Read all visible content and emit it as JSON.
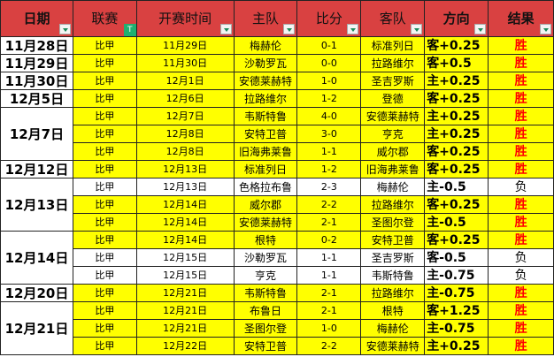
{
  "headers": [
    "日期",
    "联赛",
    "开赛时间",
    "主队",
    "比分",
    "客队",
    "方向",
    "结果"
  ],
  "groups": [
    {
      "date": "11月28日",
      "rows": [
        [
          "比甲",
          "11月29日",
          "梅赫伦",
          "0-1",
          "标准列日",
          "客+0.25",
          "胜"
        ]
      ]
    },
    {
      "date": "11月29日",
      "rows": [
        [
          "比甲",
          "11月30日",
          "沙勒罗瓦",
          "0-0",
          "拉路维尔",
          "客+0.5",
          "胜"
        ]
      ]
    },
    {
      "date": "11月30日",
      "rows": [
        [
          "比甲",
          "12月1日",
          "安德莱赫特",
          "1-0",
          "圣吉罗斯",
          "主+0.25",
          "胜"
        ]
      ]
    },
    {
      "date": "12月5日",
      "rows": [
        [
          "比甲",
          "12月6日",
          "拉路维尔",
          "1-2",
          "登德",
          "客+0.25",
          "胜"
        ]
      ]
    },
    {
      "date": "12月7日",
      "rows": [
        [
          "比甲",
          "12月7日",
          "韦斯特鲁",
          "4-0",
          "安德莱赫特",
          "主+0.25",
          "胜"
        ],
        [
          "比甲",
          "12月8日",
          "安特卫普",
          "3-0",
          "亨克",
          "主+0.25",
          "胜"
        ],
        [
          "比甲",
          "12月8日",
          "旧海弗莱鲁",
          "1-1",
          "威尔郡",
          "客+0.25",
          "胜"
        ]
      ]
    },
    {
      "date": "12月12日",
      "rows": [
        [
          "比甲",
          "12月13日",
          "标准列日",
          "1-2",
          "旧海弗莱鲁",
          "客+0.25",
          "胜"
        ]
      ]
    },
    {
      "date": "12月13日",
      "rows": [
        [
          "比甲",
          "12月13日",
          "色格拉布鲁",
          "2-3",
          "梅赫伦",
          "主-0.5",
          "负"
        ],
        [
          "比甲",
          "12月14日",
          "威尔郡",
          "2-2",
          "拉路维尔",
          "客+0.25",
          "胜"
        ],
        [
          "比甲",
          "12月14日",
          "安德莱赫特",
          "2-1",
          "圣图尔登",
          "主-0.5",
          "胜"
        ]
      ]
    },
    {
      "date": "12月14日",
      "rows": [
        [
          "比甲",
          "12月14日",
          "根特",
          "0-2",
          "安特卫普",
          "客+0.25",
          "胜"
        ],
        [
          "比甲",
          "12月15日",
          "沙勒罗瓦",
          "1-1",
          "圣吉罗斯",
          "客-0.5",
          "负"
        ],
        [
          "比甲",
          "12月15日",
          "亨克",
          "1-1",
          "韦斯特鲁",
          "主-0.75",
          "负"
        ]
      ]
    },
    {
      "date": "12月20日",
      "rows": [
        [
          "比甲",
          "12月21日",
          "韦斯特鲁",
          "2-1",
          "拉路维尔",
          "主-0.75",
          "胜"
        ]
      ]
    },
    {
      "date": "12月21日",
      "rows": [
        [
          "比甲",
          "12月21日",
          "布鲁日",
          "2-1",
          "根特",
          "客+1.25",
          "胜"
        ],
        [
          "比甲",
          "12月21日",
          "圣图尔登",
          "1-0",
          "梅赫伦",
          "主-0.75",
          "胜"
        ],
        [
          "比甲",
          "12月22日",
          "安特卫普",
          "2-2",
          "安德莱赫特",
          "主+0.25",
          "胜"
        ]
      ]
    }
  ],
  "colors": {
    "header": "#D94141",
    "win_row": "#FFFF00",
    "loss_row": "#FFFFFF",
    "win_text": "#FF0000"
  }
}
